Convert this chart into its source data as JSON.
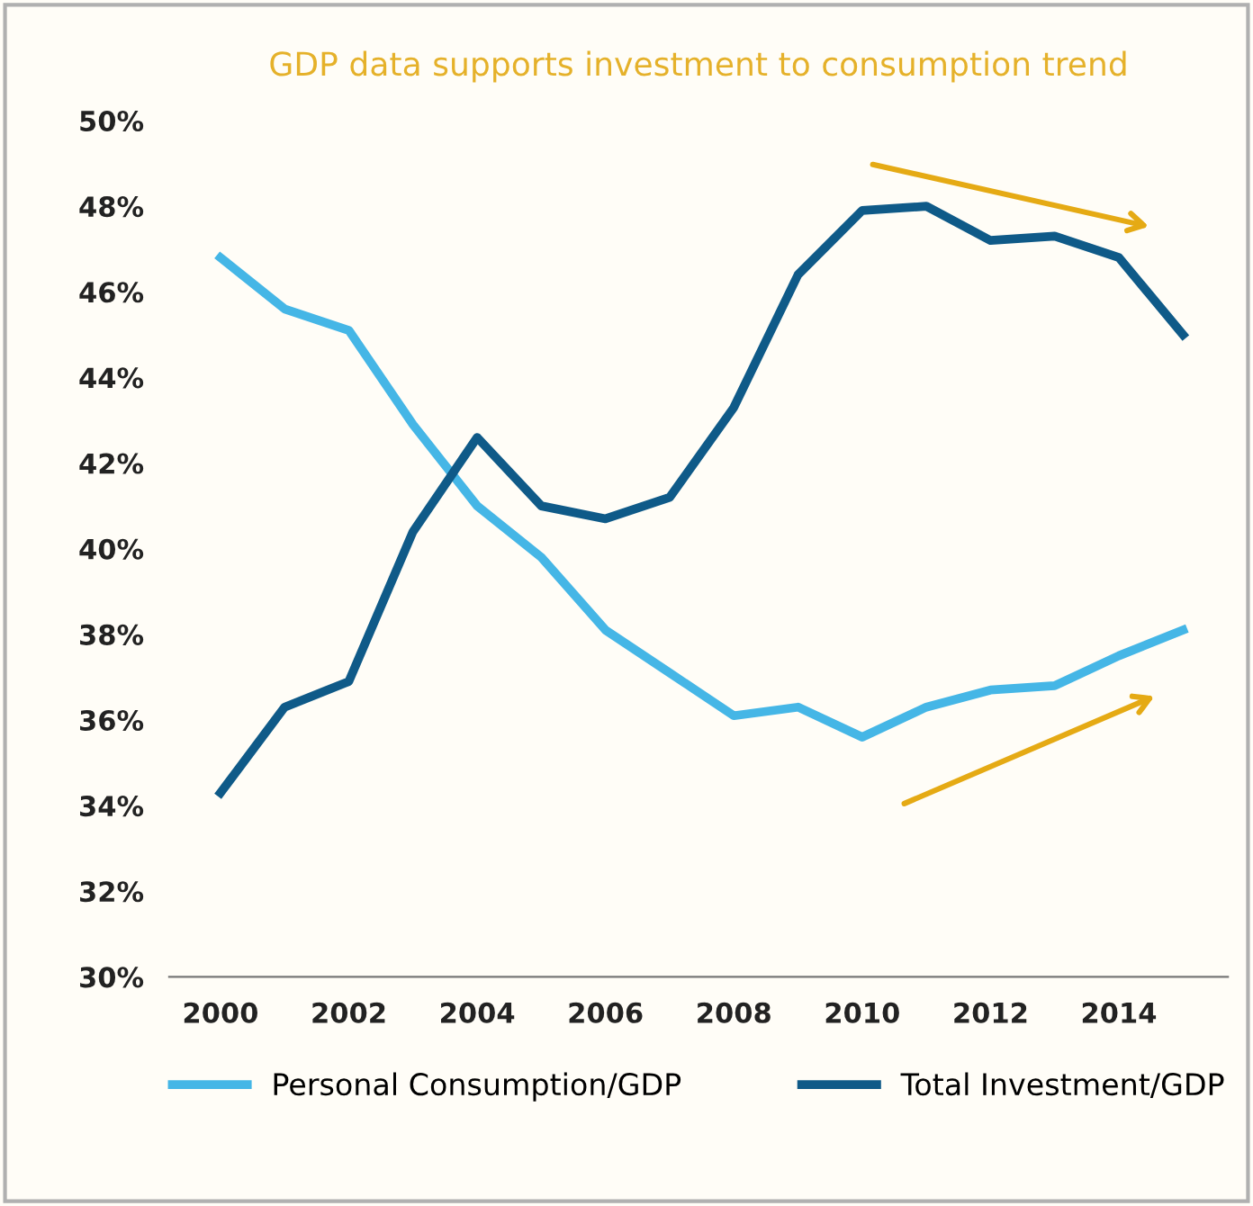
{
  "chart_data": {
    "type": "line",
    "title": "GDP data supports investment to consumption trend",
    "x": [
      2000,
      2001,
      2002,
      2003,
      2004,
      2005,
      2006,
      2007,
      2008,
      2009,
      2010,
      2011,
      2012,
      2013,
      2014,
      2015
    ],
    "series": [
      {
        "name": "Personal Consumption/GDP",
        "color": "#45b6e6",
        "values": [
          46.8,
          45.6,
          45.1,
          42.9,
          41.0,
          39.8,
          38.1,
          37.1,
          36.1,
          36.3,
          35.6,
          36.3,
          36.7,
          36.8,
          37.5,
          38.1
        ]
      },
      {
        "name": "Total Investment/GDP",
        "color": "#0f5a88",
        "values": [
          34.3,
          36.3,
          36.9,
          40.4,
          42.6,
          41.0,
          40.7,
          41.2,
          43.3,
          46.4,
          47.9,
          48.0,
          47.2,
          47.3,
          46.8,
          45.0
        ]
      }
    ],
    "xlim": [
      1999.2,
      2015.7
    ],
    "xticks": [
      2000,
      2002,
      2004,
      2006,
      2008,
      2010,
      2012,
      2014
    ],
    "ylim": [
      30,
      50
    ],
    "yticks": [
      {
        "value": 30,
        "label": "30%"
      },
      {
        "value": 32,
        "label": "32%"
      },
      {
        "value": 34,
        "label": "34%"
      },
      {
        "value": 36,
        "label": "36%"
      },
      {
        "value": 38,
        "label": "38%"
      },
      {
        "value": 40,
        "label": "40%"
      },
      {
        "value": 42,
        "label": "42%"
      },
      {
        "value": 44,
        "label": "44%"
      },
      {
        "value": 46,
        "label": "46%"
      },
      {
        "value": 48,
        "label": "48%"
      },
      {
        "value": 50,
        "label": "50%"
      }
    ],
    "grid": false,
    "legend": "bottom",
    "marker": "none",
    "line_style": "solid"
  }
}
